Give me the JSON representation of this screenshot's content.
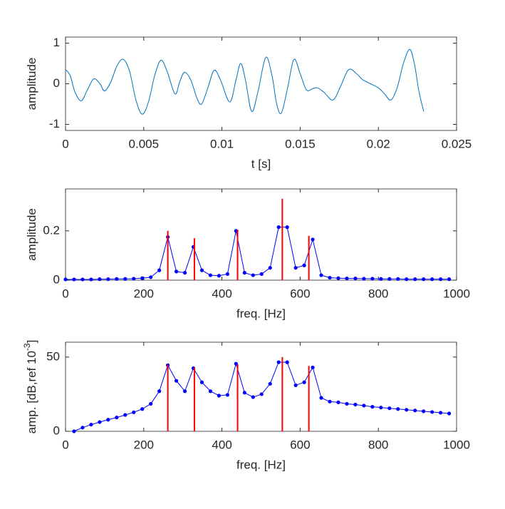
{
  "chart_data": [
    {
      "type": "line",
      "xlabel": "t [s]",
      "ylabel": "amplitude",
      "xlim": [
        0,
        0.025
      ],
      "xticks": [
        0,
        0.005,
        0.01,
        0.015,
        0.02,
        0.025
      ],
      "ylim": [
        -1.15,
        1.15
      ],
      "yticks": [
        -1,
        0,
        1
      ],
      "grid": false,
      "series": [
        {
          "color": "#0072bd",
          "smooth": true,
          "x": [
            0,
            0.0003,
            0.0006,
            0.001,
            0.0014,
            0.0018,
            0.0022,
            0.0025,
            0.0029,
            0.0033,
            0.0037,
            0.0041,
            0.0045,
            0.0049,
            0.0053,
            0.0057,
            0.0061,
            0.0065,
            0.007,
            0.0073,
            0.0076,
            0.008,
            0.0084,
            0.0087,
            0.0091,
            0.0095,
            0.0099,
            0.0105,
            0.0109,
            0.0112,
            0.0115,
            0.0119,
            0.0123,
            0.0128,
            0.0132,
            0.0135,
            0.0138,
            0.0142,
            0.0146,
            0.015,
            0.0154,
            0.0158,
            0.0161,
            0.0165,
            0.0171,
            0.0176,
            0.0181,
            0.0186,
            0.019,
            0.0195,
            0.02,
            0.0204,
            0.0208,
            0.0212,
            0.0216,
            0.022,
            0.0223,
            0.0226,
            0.0229
          ],
          "values": [
            0.35,
            0.2,
            -0.2,
            -0.42,
            -0.15,
            0.12,
            0.0,
            -0.18,
            0.05,
            0.45,
            0.6,
            0.3,
            -0.4,
            -0.75,
            -0.45,
            0.2,
            0.58,
            0.3,
            -0.25,
            0.05,
            0.28,
            0.1,
            -0.35,
            -0.5,
            -0.1,
            0.33,
            0.1,
            -0.45,
            0.1,
            0.5,
            0.1,
            -0.68,
            -0.2,
            0.65,
            0.2,
            -0.5,
            -0.72,
            -0.1,
            0.6,
            0.25,
            -0.15,
            -0.12,
            -0.1,
            -0.2,
            -0.4,
            -0.05,
            0.35,
            0.25,
            0.1,
            0.0,
            -0.1,
            -0.25,
            -0.4,
            -0.1,
            0.5,
            0.85,
            0.5,
            -0.2,
            -0.68
          ]
        }
      ]
    },
    {
      "type": "line",
      "xlabel": "freq. [Hz]",
      "ylabel": "amplitude",
      "xlim": [
        0,
        1000
      ],
      "xticks": [
        0,
        200,
        400,
        600,
        800,
        1000
      ],
      "ylim": [
        0,
        0.37
      ],
      "yticks": [
        0,
        0.2
      ],
      "grid": false,
      "series": [
        {
          "color": "#0000ff",
          "marker": true,
          "x": [
            0,
            21.8,
            43.6,
            65.4,
            87.2,
            109,
            130.8,
            152.6,
            174.4,
            196.2,
            218,
            239.8,
            261.6,
            283.4,
            305.2,
            327,
            348.8,
            370.6,
            392.4,
            414.2,
            436,
            457.8,
            479.6,
            501.4,
            523.2,
            545,
            566.8,
            588.6,
            610.4,
            632.2,
            654,
            675.8,
            697.6,
            719.4,
            741.2,
            763,
            784.8,
            806.6,
            828.4,
            850.2,
            872,
            893.8,
            915.6,
            937.4,
            959.2,
            981
          ],
          "values": [
            0.003,
            0.003,
            0.003,
            0.003,
            0.004,
            0.004,
            0.005,
            0.005,
            0.006,
            0.008,
            0.012,
            0.04,
            0.175,
            0.035,
            0.03,
            0.135,
            0.04,
            0.02,
            0.018,
            0.025,
            0.2,
            0.03,
            0.02,
            0.025,
            0.05,
            0.215,
            0.215,
            0.05,
            0.06,
            0.165,
            0.02,
            0.01,
            0.008,
            0.007,
            0.007,
            0.006,
            0.006,
            0.005,
            0.005,
            0.005,
            0.004,
            0.004,
            0.004,
            0.004,
            0.004,
            0.004
          ]
        },
        {
          "color": "#ff0000",
          "style": "stem",
          "x": [
            261.6,
            329.6,
            440,
            554.4,
            622.3
          ],
          "values": [
            0.2,
            0.17,
            0.205,
            0.33,
            0.18
          ]
        }
      ]
    },
    {
      "type": "line",
      "xlabel": "freq. [Hz]",
      "ylabel": "amp. [dB,ref 10",
      "ylabel_sup": "-3",
      "ylabel_end": "]",
      "xlim": [
        0,
        1000
      ],
      "xticks": [
        0,
        200,
        400,
        600,
        800,
        1000
      ],
      "ylim": [
        0,
        60
      ],
      "yticks": [
        0,
        50
      ],
      "grid": false,
      "series": [
        {
          "color": "#0000ff",
          "marker": true,
          "x": [
            21.8,
            43.6,
            65.4,
            87.2,
            109,
            130.8,
            152.6,
            174.4,
            196.2,
            218,
            239.8,
            261.6,
            283.4,
            305.2,
            327,
            348.8,
            370.6,
            392.4,
            414.2,
            436,
            457.8,
            479.6,
            501.4,
            523.2,
            545,
            566.8,
            588.6,
            610.4,
            632.2,
            654,
            675.8,
            697.6,
            719.4,
            741.2,
            763,
            784.8,
            806.6,
            828.4,
            850.2,
            872,
            893.8,
            915.6,
            937.4,
            959.2,
            981
          ],
          "values": [
            0,
            2.5,
            4.5,
            6.2,
            7.8,
            9.3,
            11,
            12.8,
            15,
            18.5,
            27,
            44.5,
            34,
            27,
            42.5,
            33,
            27,
            24,
            24.5,
            45.5,
            26,
            23,
            25,
            32,
            46.5,
            46.5,
            31,
            33,
            43,
            22.5,
            20,
            19.5,
            18.5,
            18,
            17.3,
            16.5,
            16,
            15.5,
            15,
            14.5,
            14,
            13.5,
            13,
            12.5,
            12
          ]
        },
        {
          "color": "#ff0000",
          "style": "stem",
          "x": [
            261.6,
            329.6,
            440,
            554.4,
            622.3
          ],
          "values": [
            45,
            43,
            45,
            50,
            44
          ]
        }
      ]
    }
  ]
}
